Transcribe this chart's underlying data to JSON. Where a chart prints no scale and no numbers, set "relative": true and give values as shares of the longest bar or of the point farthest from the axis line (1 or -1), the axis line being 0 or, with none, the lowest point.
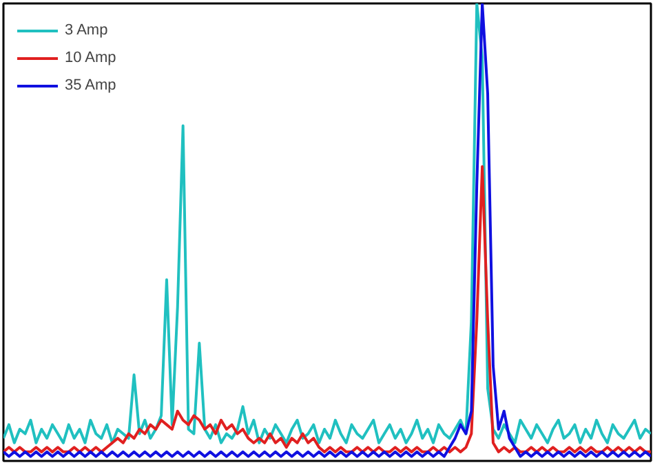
{
  "chart_data": {
    "type": "line",
    "relative": true,
    "legend": "top left",
    "categories": [
      null,
      null,
      null,
      null,
      null,
      null,
      null,
      null,
      null,
      null,
      null,
      null,
      null,
      null,
      null,
      null,
      null,
      null,
      null,
      null,
      null,
      null,
      null,
      null,
      null,
      null,
      null,
      null,
      null,
      null,
      null,
      null,
      null,
      null,
      null,
      null,
      null,
      null,
      null,
      null,
      null,
      null,
      null,
      null,
      null,
      null,
      null,
      null,
      null,
      null,
      null,
      null,
      null,
      null,
      null,
      null,
      null,
      null,
      null,
      null,
      null,
      null,
      null,
      null,
      null,
      null,
      null,
      null,
      null,
      null,
      null,
      null,
      null,
      null,
      null,
      null,
      null,
      null,
      null,
      null,
      null,
      null,
      null,
      null,
      null,
      null,
      null,
      null,
      null,
      null,
      null,
      null,
      null,
      null,
      null,
      null,
      null,
      null,
      null,
      null,
      null,
      null,
      null,
      null,
      null,
      null,
      null,
      null,
      null,
      null,
      null,
      null,
      null,
      null,
      null,
      null,
      null,
      null,
      null,
      null
    ],
    "series": [
      {
        "name": "3 Amp",
        "color": "#20c0c0",
        "values": [
          0.04,
          0.07,
          0.03,
          0.06,
          0.05,
          0.08,
          0.03,
          0.06,
          0.04,
          0.07,
          0.05,
          0.03,
          0.07,
          0.04,
          0.06,
          0.03,
          0.08,
          0.05,
          0.04,
          0.07,
          0.03,
          0.06,
          0.05,
          0.04,
          0.18,
          0.05,
          0.08,
          0.04,
          0.06,
          0.09,
          0.39,
          0.07,
          0.33,
          0.73,
          0.06,
          0.05,
          0.25,
          0.06,
          0.04,
          0.07,
          0.03,
          0.05,
          0.04,
          0.06,
          0.11,
          0.05,
          0.08,
          0.03,
          0.06,
          0.04,
          0.07,
          0.05,
          0.03,
          0.06,
          0.08,
          0.04,
          0.05,
          0.07,
          0.03,
          0.06,
          0.04,
          0.08,
          0.05,
          0.03,
          0.07,
          0.05,
          0.04,
          0.06,
          0.08,
          0.03,
          0.05,
          0.07,
          0.04,
          0.06,
          0.03,
          0.05,
          0.08,
          0.04,
          0.06,
          0.03,
          0.07,
          0.05,
          0.04,
          0.06,
          0.08,
          0.05,
          0.3,
          1,
          0.88,
          0.15,
          0.06,
          0.04,
          0.07,
          0.05,
          0.03,
          0.08,
          0.06,
          0.04,
          0.07,
          0.05,
          0.03,
          0.06,
          0.08,
          0.04,
          0.05,
          0.07,
          0.03,
          0.06,
          0.04,
          0.08,
          0.05,
          0.03,
          0.07,
          0.05,
          0.04,
          0.06,
          0.08,
          0.04,
          0.06,
          0.05
        ]
      },
      {
        "name": "10 Amp",
        "color": "#e02020",
        "values": [
          0.01,
          0.02,
          0.01,
          0.02,
          0.01,
          0.01,
          0.02,
          0.01,
          0.02,
          0.01,
          0.02,
          0.01,
          0.01,
          0.02,
          0.01,
          0.02,
          0.01,
          0.02,
          0.01,
          0.02,
          0.03,
          0.04,
          0.03,
          0.05,
          0.04,
          0.06,
          0.05,
          0.07,
          0.06,
          0.08,
          0.07,
          0.06,
          0.1,
          0.08,
          0.07,
          0.09,
          0.08,
          0.06,
          0.07,
          0.05,
          0.08,
          0.06,
          0.07,
          0.05,
          0.06,
          0.04,
          0.03,
          0.04,
          0.03,
          0.05,
          0.03,
          0.04,
          0.02,
          0.04,
          0.03,
          0.05,
          0.03,
          0.04,
          0.02,
          0.01,
          0.02,
          0.01,
          0.02,
          0.01,
          0.01,
          0.02,
          0.01,
          0.02,
          0.01,
          0.02,
          0.01,
          0.01,
          0.02,
          0.01,
          0.02,
          0.01,
          0.02,
          0.01,
          0.01,
          0.02,
          0.01,
          0.02,
          0.01,
          0.02,
          0.01,
          0.02,
          0.05,
          0.3,
          0.64,
          0.3,
          0.03,
          0.01,
          0.02,
          0.01,
          0.02,
          0.01,
          0.01,
          0.02,
          0.01,
          0.02,
          0.01,
          0.02,
          0.01,
          0.01,
          0.02,
          0.01,
          0.02,
          0.01,
          0.02,
          0.01,
          0.01,
          0.02,
          0.01,
          0.02,
          0.01,
          0.02,
          0.01,
          0.02,
          0.01,
          0.01
        ]
      },
      {
        "name": "35 Amp",
        "color": "#1010e0",
        "values": [
          0.01,
          0,
          0.01,
          0,
          0.01,
          0,
          0.01,
          0,
          0.01,
          0,
          0.01,
          0,
          0.01,
          0,
          0.01,
          0,
          0.01,
          0,
          0.01,
          0,
          0.01,
          0,
          0.01,
          0,
          0.01,
          0,
          0.01,
          0,
          0.01,
          0,
          0.01,
          0,
          0.01,
          0,
          0.01,
          0,
          0.01,
          0,
          0.01,
          0,
          0.01,
          0,
          0.01,
          0,
          0.01,
          0,
          0.01,
          0,
          0.01,
          0,
          0.01,
          0,
          0.01,
          0,
          0.01,
          0,
          0.01,
          0,
          0.01,
          0,
          0.01,
          0,
          0.01,
          0,
          0.01,
          0,
          0.01,
          0,
          0.01,
          0,
          0.01,
          0,
          0.01,
          0,
          0.01,
          0,
          0.01,
          0,
          0.01,
          0,
          0.01,
          0,
          0.02,
          0.04,
          0.07,
          0.05,
          0.1,
          0.6,
          1,
          0.8,
          0.2,
          0.06,
          0.1,
          0.04,
          0.02,
          0,
          0.01,
          0,
          0.01,
          0,
          0.01,
          0,
          0.01,
          0,
          0.01,
          0,
          0.01,
          0,
          0.01,
          0,
          0.01,
          0,
          0.01,
          0,
          0.01,
          0,
          0.01,
          0,
          0.01,
          0
        ]
      }
    ]
  }
}
